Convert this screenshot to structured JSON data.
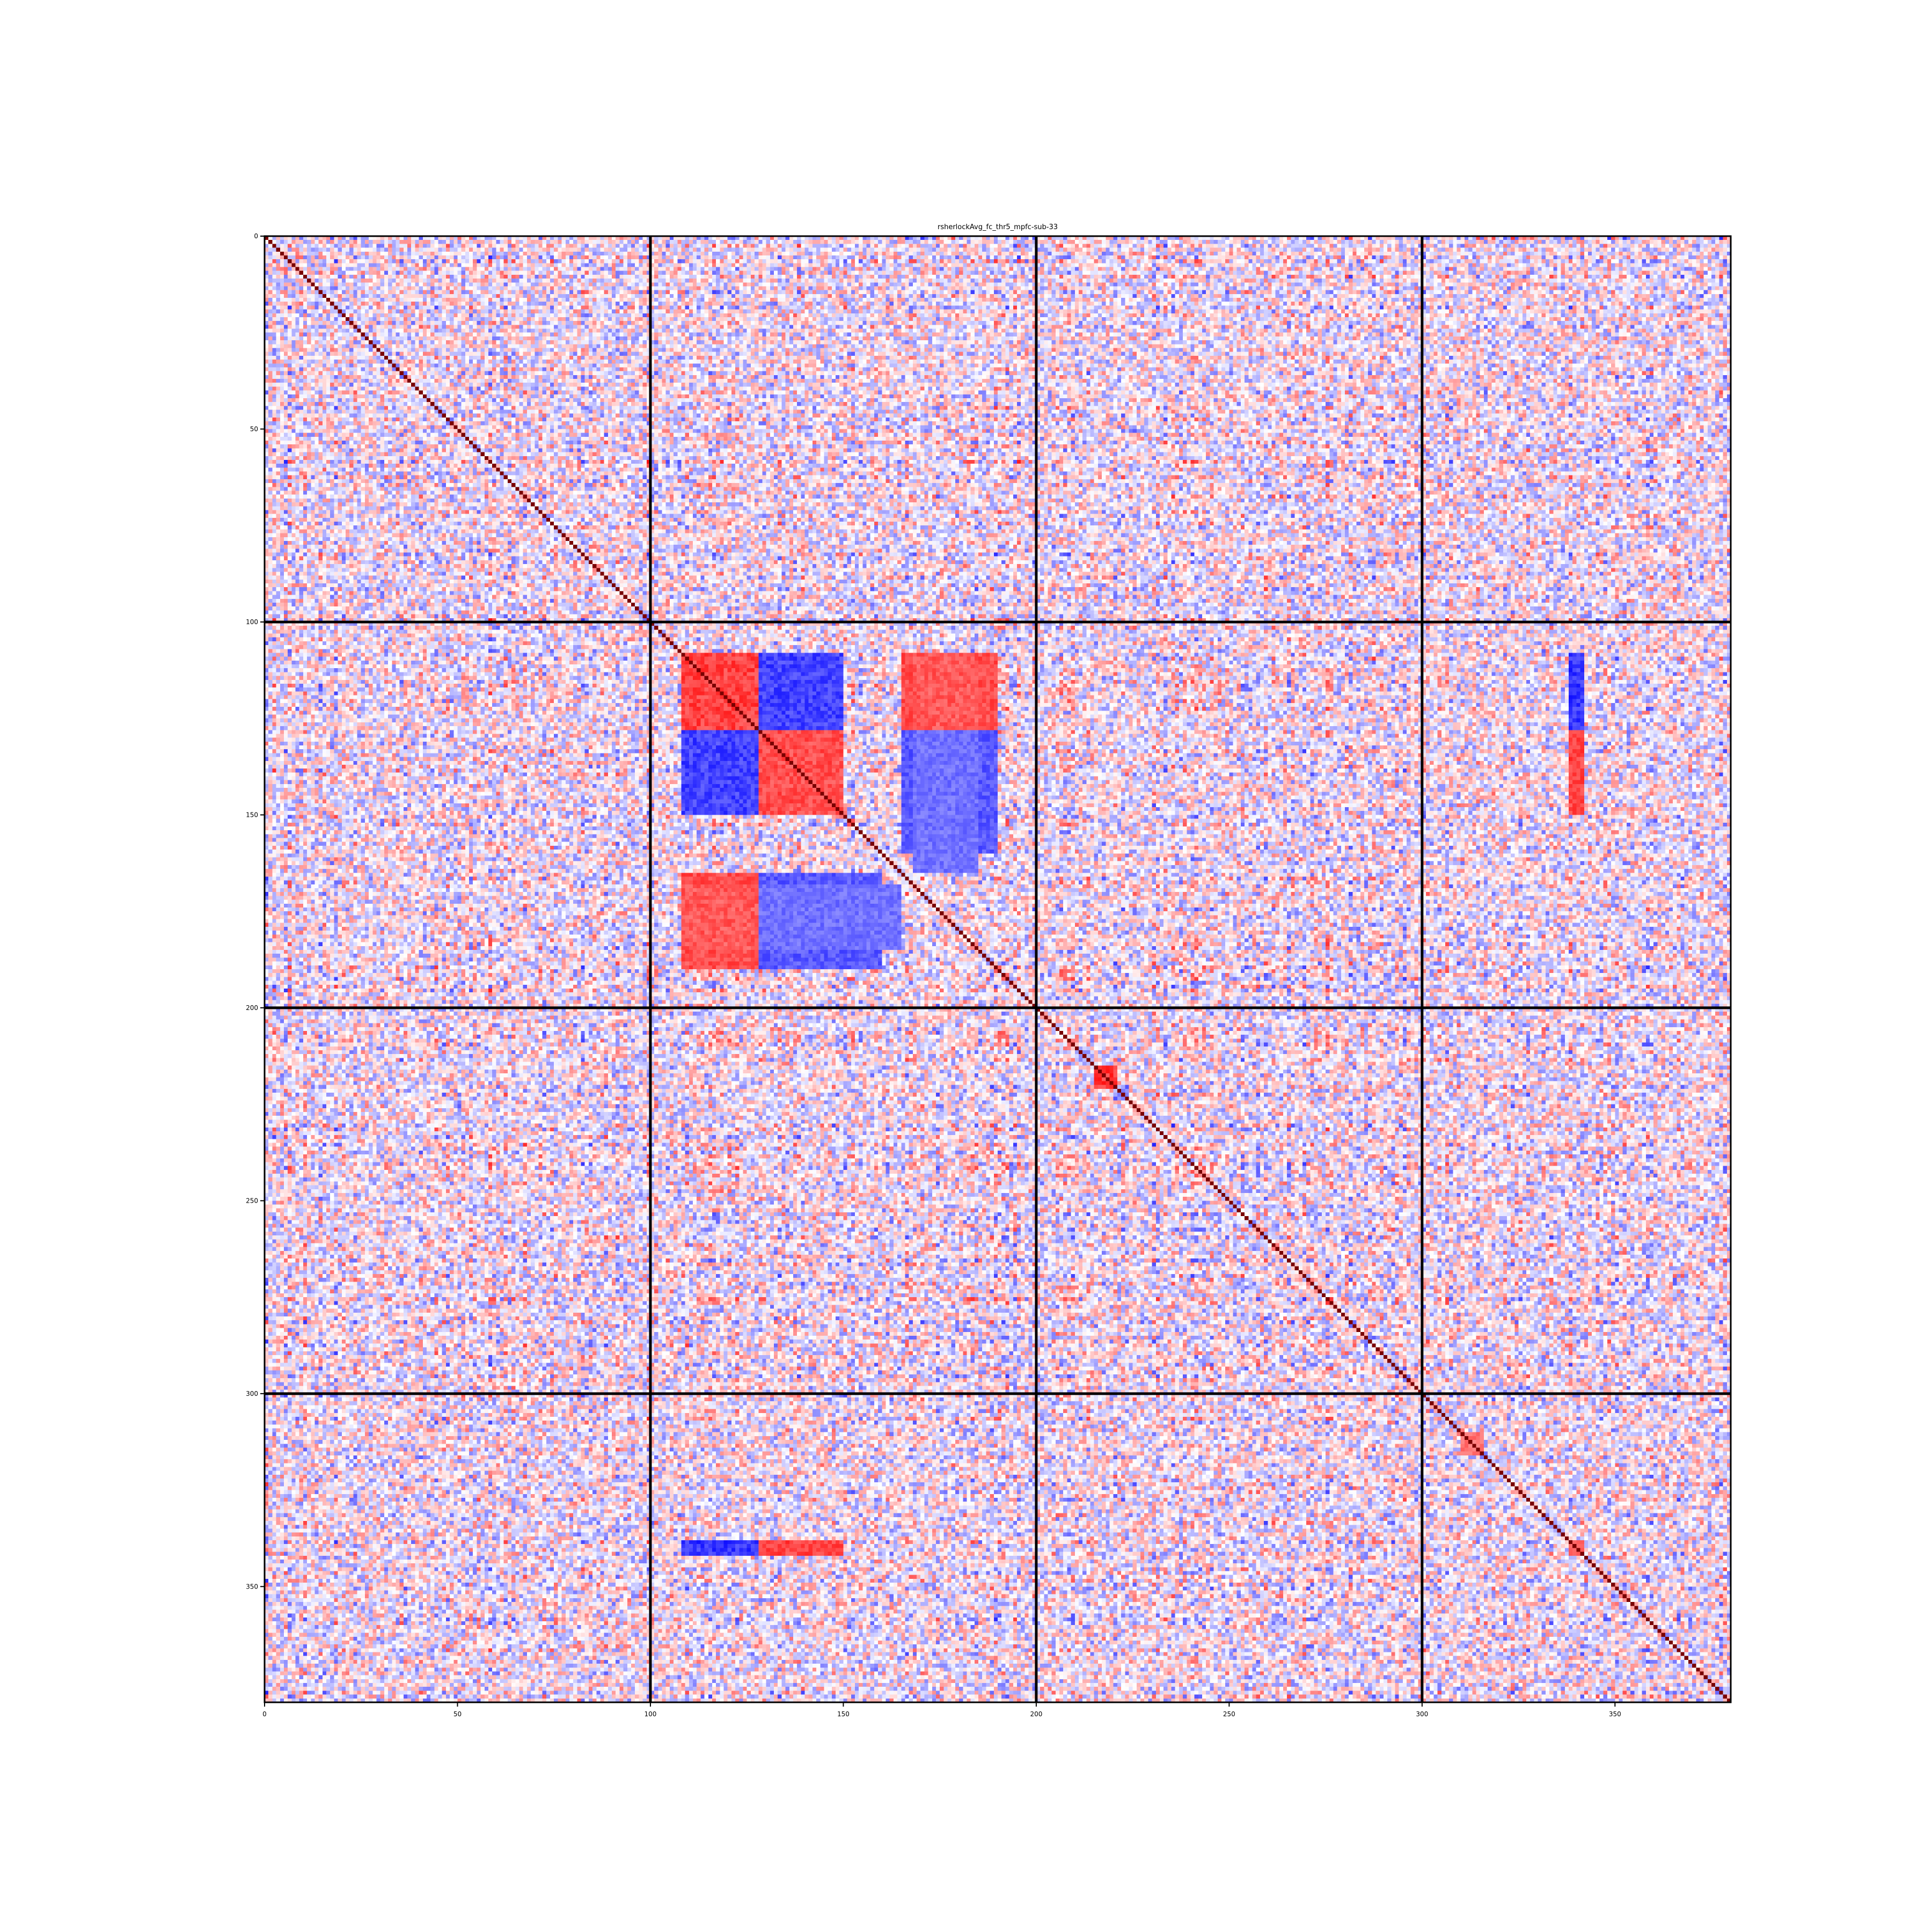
{
  "chart_data": {
    "type": "heatmap",
    "title": "rsherlockAvg_fc_thr5_mpfc-sub-33",
    "xlabel": "",
    "ylabel": "",
    "n": 380,
    "xlim": [
      0,
      380
    ],
    "ylim": [
      380,
      0
    ],
    "x_ticks": [
      0,
      50,
      100,
      150,
      200,
      250,
      300,
      350
    ],
    "y_ticks": [
      0,
      50,
      100,
      150,
      200,
      250,
      300,
      350
    ],
    "x_tick_labels": [
      "0",
      "50",
      "100",
      "150",
      "200",
      "250",
      "300",
      "350"
    ],
    "y_tick_labels": [
      "0",
      "50",
      "100",
      "150",
      "200",
      "250",
      "300",
      "350"
    ],
    "block_boundaries": [
      100,
      200,
      300
    ],
    "value_range": [
      -1,
      1
    ],
    "colormap": "bwr",
    "colors": {
      "negative": "#0000ff",
      "zero": "#ffffff",
      "positive": "#ff0000",
      "diagonal": "#7a0000",
      "boundary": "#000000"
    },
    "diagonal_value": 1.0,
    "grid": false,
    "legend": "none",
    "notable_features": [
      {
        "rows": [
          108,
          128
        ],
        "cols": [
          108,
          128
        ],
        "value": 0.8
      },
      {
        "rows": [
          128,
          150
        ],
        "cols": [
          128,
          150
        ],
        "value": 0.75
      },
      {
        "rows": [
          108,
          128
        ],
        "cols": [
          128,
          150
        ],
        "value": -0.8
      },
      {
        "rows": [
          128,
          150
        ],
        "cols": [
          108,
          128
        ],
        "value": -0.8
      },
      {
        "rows": [
          165,
          190
        ],
        "cols": [
          108,
          128
        ],
        "value": 0.75
      },
      {
        "rows": [
          165,
          190
        ],
        "cols": [
          128,
          160
        ],
        "value": -0.7
      },
      {
        "rows": [
          108,
          128
        ],
        "cols": [
          168,
          185
        ],
        "value": 0.7
      },
      {
        "rows": [
          128,
          165
        ],
        "cols": [
          168,
          185
        ],
        "value": -0.6
      },
      {
        "rows": [
          338,
          342
        ],
        "cols": [
          108,
          128
        ],
        "value": -0.85
      },
      {
        "rows": [
          338,
          342
        ],
        "cols": [
          128,
          150
        ],
        "value": 0.8
      },
      {
        "rows": [
          215,
          221
        ],
        "cols": [
          215,
          221
        ],
        "value": 0.85
      },
      {
        "rows": [
          310,
          316
        ],
        "cols": [
          310,
          316
        ],
        "value": 0.6
      },
      {
        "rows": [
          338,
          342
        ],
        "cols": [
          338,
          342
        ],
        "value": 0.7
      }
    ]
  }
}
